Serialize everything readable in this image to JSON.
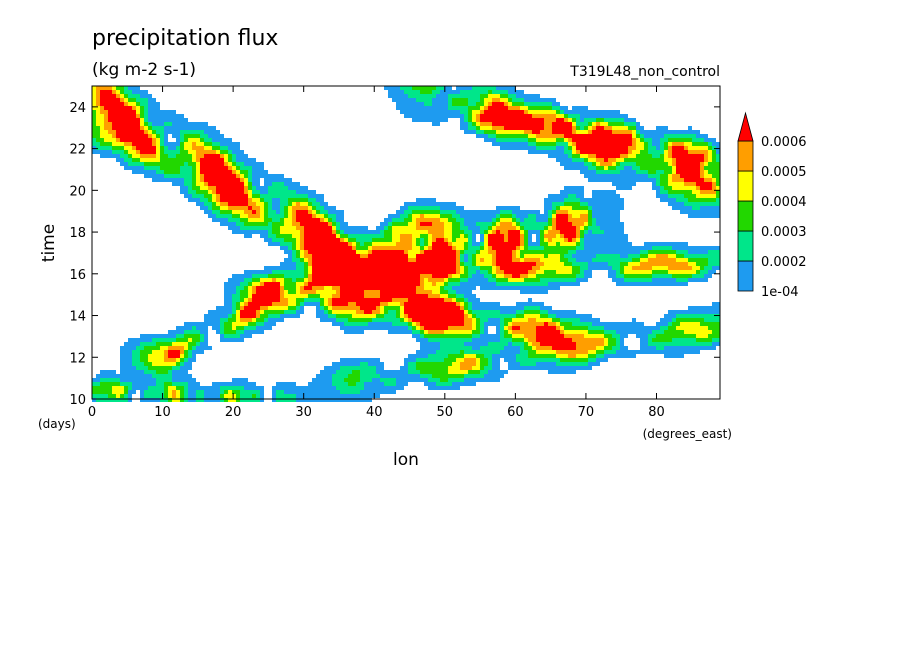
{
  "chart_data": {
    "type": "heatmap",
    "title": "precipitation flux",
    "subtitle": "(kg m-2 s-1)",
    "run_label": "T319L48_non_control",
    "xlabel": "lon",
    "ylabel": "time",
    "x_unit": "(degrees_east)",
    "y_unit": "(days)",
    "xlim": [
      0,
      89
    ],
    "ylim": [
      10,
      25
    ],
    "x_ticks": [
      "0",
      "10",
      "20",
      "30",
      "40",
      "50",
      "60",
      "70",
      "80"
    ],
    "y_ticks": [
      "10",
      "12",
      "14",
      "16",
      "18",
      "20",
      "22",
      "24"
    ],
    "colorbar": {
      "levels": [
        "1e-04",
        "0.0002",
        "0.0003",
        "0.0004",
        "0.0005",
        "0.0006"
      ],
      "level_values": [
        0.0001,
        0.0002,
        0.0003,
        0.0004,
        0.0005,
        0.0006
      ],
      "colors": [
        "#1e9bf0",
        "#00e68a",
        "#22d700",
        "#ffff00",
        "#ff9e00",
        "#ff0000"
      ],
      "extend_max": true,
      "below_min_color": "#ffffff"
    },
    "rain_bands": [
      {
        "lon_start": 0,
        "time_start": 24.8,
        "lon_end": 40,
        "time_end": 16.5,
        "width_days": 1.4,
        "peak": 0.00075
      },
      {
        "lon_start": 5,
        "time_start": 22.5,
        "lon_end": 45,
        "time_end": 14.5,
        "width_days": 1.2,
        "peak": 0.0007
      },
      {
        "lon_start": 12,
        "time_start": 12.3,
        "lon_end": 45,
        "time_end": 18.2,
        "width_days": 1.0,
        "peak": 0.00065
      },
      {
        "lon_start": 28,
        "time_start": 15.0,
        "lon_end": 65,
        "time_end": 13.2,
        "width_days": 1.1,
        "peak": 0.0008
      },
      {
        "lon_start": 35,
        "time_start": 16.0,
        "lon_end": 89,
        "time_end": 16.5,
        "width_days": 0.9,
        "peak": 0.0007
      },
      {
        "lon_start": 45,
        "time_start": 16.5,
        "lon_end": 70,
        "time_end": 18.5,
        "width_days": 1.4,
        "peak": 0.0009
      },
      {
        "lon_start": 50,
        "time_start": 24.5,
        "lon_end": 89,
        "time_end": 20.0,
        "width_days": 1.3,
        "peak": 0.00075
      },
      {
        "lon_start": 60,
        "time_start": 23.5,
        "lon_end": 89,
        "time_end": 21.5,
        "width_days": 1.0,
        "peak": 0.0007
      },
      {
        "lon_start": 0,
        "time_start": 10.5,
        "lon_end": 25,
        "time_end": 10.0,
        "width_days": 0.8,
        "peak": 0.0005
      },
      {
        "lon_start": 40,
        "time_start": 11.0,
        "lon_end": 89,
        "time_end": 13.5,
        "width_days": 1.0,
        "peak": 0.00055
      }
    ]
  }
}
